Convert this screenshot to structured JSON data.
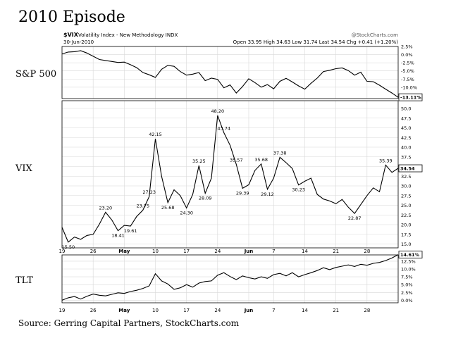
{
  "page": {
    "title": "2010 Episode",
    "source": "Source: Gerring Capital Partners, StockCharts.com",
    "labels": {
      "sp500": "S&P 500",
      "vix": "VIX",
      "tlt": "TLT"
    }
  },
  "header": {
    "symbol": "$VIX",
    "desc": "Volatility Index - New Methodology  INDX",
    "date": "30-Jun-2010",
    "brand": "@StockCharts.com",
    "quote": "Open 33.95  High 34.63  Low 31.74  Last 34.54  Chg +0.41 (+1.20%)"
  },
  "chart_data": [
    {
      "type": "line",
      "panel": "S&P 500",
      "y_unit": "percent",
      "ylim": [
        -13.5,
        2.5
      ],
      "yticks": [
        "2.5%",
        "0.0%",
        "-2.5%",
        "-5.0%",
        "-7.5%",
        "-10.0%"
      ],
      "last_label": "-13.11%",
      "x": [
        0,
        1,
        2,
        3,
        4,
        5,
        6,
        7,
        8,
        9,
        10,
        11,
        12,
        13,
        14,
        15,
        16,
        17,
        18,
        19,
        20,
        21,
        22,
        23,
        24,
        25,
        26,
        27,
        28,
        29,
        30,
        31,
        32,
        33,
        34,
        35,
        36,
        37,
        38,
        39,
        40,
        41,
        42,
        43,
        44,
        45,
        46,
        47,
        48,
        49,
        50,
        51,
        52,
        53,
        54
      ],
      "values": [
        0.2,
        0.8,
        0.9,
        1.2,
        0.5,
        -0.5,
        -1.5,
        -1.8,
        -2.1,
        -2.4,
        -2.3,
        -3.1,
        -4.0,
        -5.5,
        -6.2,
        -7.0,
        -4.5,
        -3.3,
        -3.6,
        -5.2,
        -6.3,
        -6.0,
        -5.5,
        -8.0,
        -7.2,
        -7.6,
        -10.2,
        -9.3,
        -11.8,
        -9.8,
        -7.4,
        -8.6,
        -10.0,
        -9.2,
        -10.5,
        -8.2,
        -7.3,
        -8.4,
        -9.6,
        -10.6,
        -8.8,
        -7.2,
        -5.2,
        -4.8,
        -4.3,
        -4.1,
        -4.9,
        -6.3,
        -5.4,
        -8.2,
        -8.3,
        -9.4,
        -10.6,
        -11.8,
        -13.1
      ]
    },
    {
      "type": "line",
      "panel": "VIX",
      "ylim": [
        14,
        52
      ],
      "yticks": [
        "15.0",
        "17.5",
        "20.0",
        "22.5",
        "25.0",
        "27.5",
        "30.0",
        "32.5",
        "35.0",
        "37.5",
        "40.0",
        "42.5",
        "45.0",
        "47.5",
        "50.0"
      ],
      "last_label": "34.54",
      "x": [
        0,
        1,
        2,
        3,
        4,
        5,
        6,
        7,
        8,
        9,
        10,
        11,
        12,
        13,
        14,
        15,
        16,
        17,
        18,
        19,
        20,
        21,
        22,
        23,
        24,
        25,
        26,
        27,
        28,
        29,
        30,
        31,
        32,
        33,
        34,
        35,
        36,
        37,
        38,
        39,
        40,
        41,
        42,
        43,
        44,
        45,
        46,
        47,
        48,
        49,
        50,
        51,
        52,
        53,
        54
      ],
      "values": [
        19.3,
        15.5,
        16.8,
        16.2,
        17.2,
        17.5,
        20.1,
        23.2,
        21.2,
        18.41,
        19.8,
        19.61,
        22.1,
        23.75,
        27.23,
        42.15,
        32.5,
        25.68,
        29.0,
        27.5,
        24.3,
        27.8,
        35.25,
        28.09,
        32.0,
        48.2,
        43.74,
        40.5,
        35.57,
        29.39,
        30.3,
        34.0,
        35.68,
        29.12,
        32.0,
        37.38,
        36.0,
        34.5,
        30.23,
        31.2,
        32.0,
        27.8,
        26.6,
        26.1,
        25.4,
        26.5,
        24.5,
        22.87,
        25.2,
        27.5,
        29.5,
        28.5,
        35.39,
        33.5,
        34.54
      ],
      "data_labels": [
        {
          "x": 1,
          "value": "15.50"
        },
        {
          "x": 7,
          "value": "23.20"
        },
        {
          "x": 9,
          "value": "18.41"
        },
        {
          "x": 11,
          "value": "19.61"
        },
        {
          "x": 13,
          "value": "23.75"
        },
        {
          "x": 14,
          "value": "27.23"
        },
        {
          "x": 15,
          "value": "42.15"
        },
        {
          "x": 17,
          "value": "25.68"
        },
        {
          "x": 20,
          "value": "24.30"
        },
        {
          "x": 22,
          "value": "35.25"
        },
        {
          "x": 23,
          "value": "28.09"
        },
        {
          "x": 25,
          "value": "48.20"
        },
        {
          "x": 26,
          "value": "43.74"
        },
        {
          "x": 28,
          "value": "35.57"
        },
        {
          "x": 29,
          "value": "29.39"
        },
        {
          "x": 32,
          "value": "35.68"
        },
        {
          "x": 33,
          "value": "29.12"
        },
        {
          "x": 35,
          "value": "37.38"
        },
        {
          "x": 38,
          "value": "30.23"
        },
        {
          "x": 47,
          "value": "22.87"
        },
        {
          "x": 52,
          "value": "35.39"
        }
      ]
    },
    {
      "type": "line",
      "panel": "TLT",
      "y_unit": "percent",
      "ylim": [
        -0.8,
        14.5
      ],
      "yticks": [
        "0.0%",
        "2.5%",
        "5.0%",
        "7.5%",
        "10.0%",
        "12.5%"
      ],
      "last_label": "14.61%",
      "x": [
        0,
        1,
        2,
        3,
        4,
        5,
        6,
        7,
        8,
        9,
        10,
        11,
        12,
        13,
        14,
        15,
        16,
        17,
        18,
        19,
        20,
        21,
        22,
        23,
        24,
        25,
        26,
        27,
        28,
        29,
        30,
        31,
        32,
        33,
        34,
        35,
        36,
        37,
        38,
        39,
        40,
        41,
        42,
        43,
        44,
        45,
        46,
        47,
        48,
        49,
        50,
        51,
        52,
        53,
        54
      ],
      "values": [
        0.0,
        0.8,
        1.2,
        0.4,
        1.3,
        2.0,
        1.6,
        1.4,
        1.9,
        2.4,
        2.2,
        2.8,
        3.2,
        3.8,
        4.6,
        8.5,
        6.2,
        5.2,
        3.5,
        4.0,
        5.0,
        4.2,
        5.5,
        6.0,
        6.2,
        8.0,
        8.8,
        7.6,
        6.6,
        7.8,
        7.2,
        6.8,
        7.5,
        7.0,
        8.2,
        8.6,
        7.8,
        8.8,
        7.5,
        8.2,
        8.8,
        9.5,
        10.4,
        9.8,
        10.5,
        10.9,
        11.3,
        10.8,
        11.5,
        11.2,
        11.8,
        12.1,
        12.7,
        13.5,
        14.6
      ]
    }
  ],
  "x_axis": {
    "ticks": [
      {
        "x": 0,
        "label": "19"
      },
      {
        "x": 5,
        "label": "26"
      },
      {
        "x": 10,
        "label": "May"
      },
      {
        "x": 15,
        "label": "10"
      },
      {
        "x": 20,
        "label": "17"
      },
      {
        "x": 25,
        "label": "24"
      },
      {
        "x": 30,
        "label": "Jun"
      },
      {
        "x": 34,
        "label": "7"
      },
      {
        "x": 39,
        "label": "14"
      },
      {
        "x": 44,
        "label": "21"
      },
      {
        "x": 49,
        "label": "28"
      }
    ],
    "bold": [
      "May",
      "Jun"
    ]
  }
}
